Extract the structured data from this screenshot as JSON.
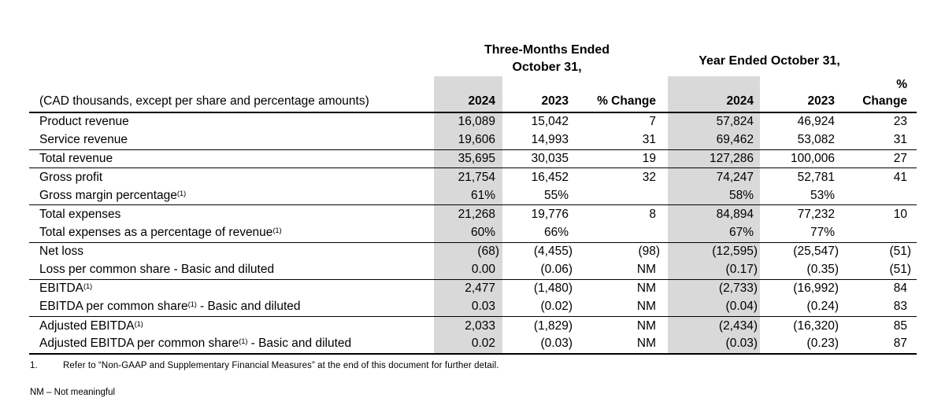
{
  "colors": {
    "shaded_column": "#d9d9d9",
    "text": "#000000",
    "background": "#ffffff"
  },
  "table": {
    "period_groups": [
      {
        "line1": "Three-Months Ended",
        "line2": "October 31,"
      },
      {
        "line1": "Year Ended October 31,"
      }
    ],
    "units_note": "(CAD thousands, except per share and percentage amounts)",
    "column_headers": [
      "2024",
      "2023",
      "% Change",
      "2024",
      "2023",
      "% Change"
    ],
    "rows": [
      {
        "label_parts": [
          [
            "t",
            "Product revenue"
          ]
        ],
        "values": [
          "16,089",
          "15,042",
          "7",
          "57,824",
          "46,924",
          "23"
        ],
        "rule_after": false
      },
      {
        "label_parts": [
          [
            "t",
            "Service revenue"
          ]
        ],
        "values": [
          "19,606",
          "14,993",
          "31",
          "69,462",
          "53,082",
          "31"
        ],
        "rule_after": true
      },
      {
        "label_parts": [
          [
            "t",
            "Total revenue"
          ]
        ],
        "values": [
          "35,695",
          "30,035",
          "19",
          "127,286",
          "100,006",
          "27"
        ],
        "rule_after": true
      },
      {
        "label_parts": [
          [
            "t",
            "Gross profit"
          ]
        ],
        "values": [
          "21,754",
          "16,452",
          "32",
          "74,247",
          "52,781",
          "41"
        ],
        "rule_after": false
      },
      {
        "label_parts": [
          [
            "t",
            "Gross margin percentage"
          ],
          [
            "s",
            "(1)"
          ]
        ],
        "values": [
          "61%",
          "55%",
          "",
          "58%",
          "53%",
          ""
        ],
        "rule_after": true
      },
      {
        "label_parts": [
          [
            "t",
            "Total expenses"
          ]
        ],
        "values": [
          "21,268",
          "19,776",
          "8",
          "84,894",
          "77,232",
          "10"
        ],
        "rule_after": false
      },
      {
        "label_parts": [
          [
            "t",
            "Total expenses as a percentage of revenue"
          ],
          [
            "s",
            "(1)"
          ]
        ],
        "values": [
          "60%",
          "66%",
          "",
          "67%",
          "77%",
          ""
        ],
        "rule_after": true
      },
      {
        "label_parts": [
          [
            "t",
            "Net loss"
          ]
        ],
        "values": [
          "(68)",
          "(4,455)",
          "(98)",
          "(12,595)",
          "(25,547)",
          "(51)"
        ],
        "rule_after": false
      },
      {
        "label_parts": [
          [
            "t",
            "Loss per common share - Basic and diluted"
          ]
        ],
        "values": [
          "0.00",
          "(0.06)",
          "NM",
          "(0.17)",
          "(0.35)",
          "(51)"
        ],
        "rule_after": true
      },
      {
        "label_parts": [
          [
            "t",
            "EBITDA"
          ],
          [
            "s",
            "(1)"
          ]
        ],
        "values": [
          "2,477",
          "(1,480)",
          "NM",
          "(2,733)",
          "(16,992)",
          "84"
        ],
        "rule_after": false
      },
      {
        "label_parts": [
          [
            "t",
            "EBITDA per common share"
          ],
          [
            "s",
            "(1)"
          ],
          [
            "t",
            " - Basic and diluted"
          ]
        ],
        "values": [
          "0.03",
          "(0.02)",
          "NM",
          "(0.04)",
          "(0.24)",
          "83"
        ],
        "rule_after": true
      },
      {
        "label_parts": [
          [
            "t",
            "Adjusted EBITDA"
          ],
          [
            "s",
            "(1)"
          ]
        ],
        "values": [
          "2,033",
          "(1,829)",
          "NM",
          "(2,434)",
          "(16,320)",
          "85"
        ],
        "rule_after": false
      },
      {
        "label_parts": [
          [
            "t",
            "Adjusted EBITDA per common share"
          ],
          [
            "s",
            "(1)"
          ],
          [
            "t",
            " - Basic and diluted"
          ]
        ],
        "values": [
          "0.02",
          "(0.03)",
          "NM",
          "(0.03)",
          "(0.23)",
          "87"
        ],
        "rule_after": false
      }
    ]
  },
  "footnotes": {
    "items": [
      {
        "marker": "1.",
        "text": "Refer to “Non-GAAP and Supplementary Financial Measures” at the end of this document for further detail."
      }
    ],
    "abbreviation_note": "NM – Not meaningful"
  }
}
